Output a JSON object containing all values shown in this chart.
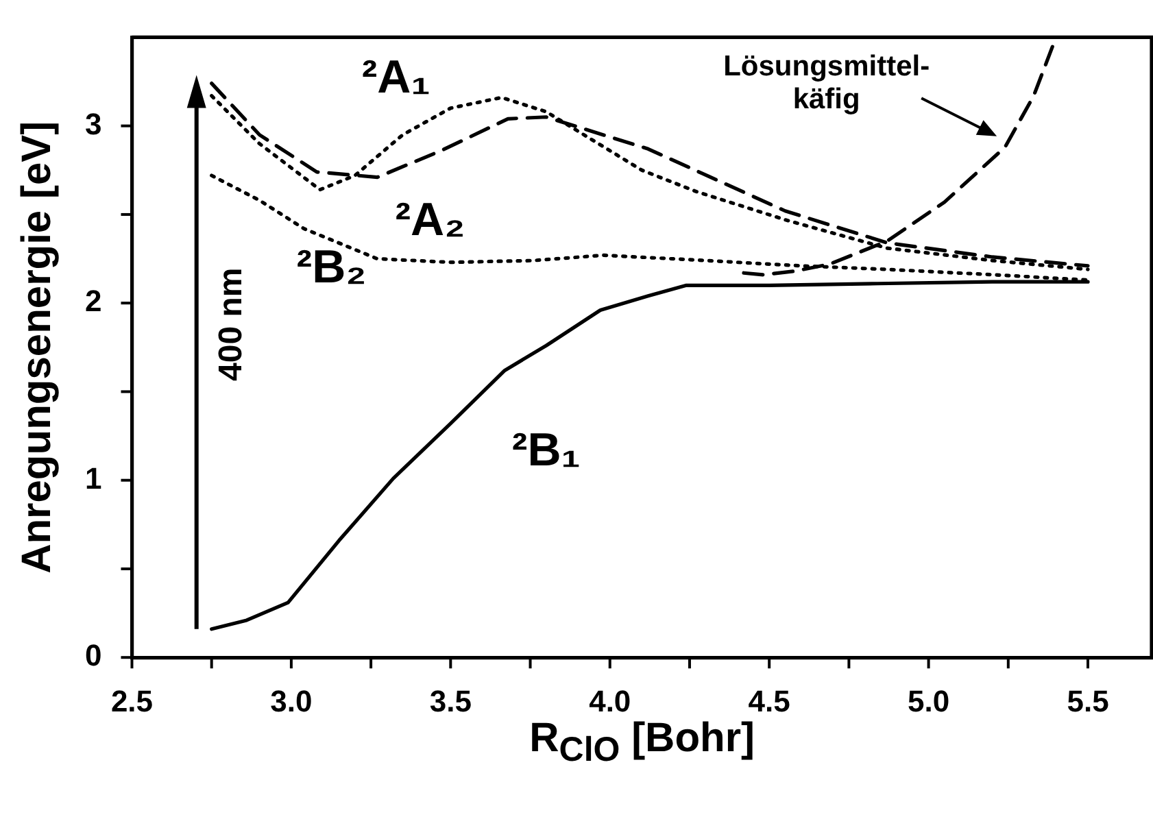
{
  "chart_data": {
    "type": "line",
    "xlabel": "R$_{ClO}$ [Bohr]",
    "ylabel": "Anregungsenergie [eV]",
    "xlim": [
      2.5,
      5.7
    ],
    "ylim": [
      0,
      3.5
    ],
    "xticks": [
      2.5,
      {
        "value": 2.75,
        "label": null
      },
      {
        "value": 3,
        "label": "3.0"
      },
      {
        "value": 3.25,
        "label": null
      },
      3.5,
      {
        "value": 3.75,
        "label": null
      },
      {
        "value": 4,
        "label": "4.0"
      },
      {
        "value": 4.25,
        "label": null
      },
      4.5,
      {
        "value": 4.75,
        "label": null
      },
      {
        "value": 5,
        "label": "5.0"
      },
      {
        "value": 5.25,
        "label": null
      },
      5.5
    ],
    "yticks": [
      0,
      {
        "value": 0.5,
        "label": null
      },
      1,
      {
        "value": 1.5,
        "label": null
      },
      2,
      {
        "value": 2.5,
        "label": null
      },
      3
    ],
    "grid": false,
    "legend": false,
    "marker": "none",
    "series": [
      {
        "name": "²A₁",
        "color": "#000000",
        "line_style": "dotted",
        "x": [
          2.75,
          2.9,
          3.09,
          3.2,
          3.35,
          3.5,
          3.66,
          3.8,
          4.1,
          4.27,
          4.55,
          4.87,
          5.2,
          5.5
        ],
        "values": [
          3.17,
          2.9,
          2.64,
          2.72,
          2.95,
          3.1,
          3.16,
          3.08,
          2.75,
          2.63,
          2.47,
          2.31,
          2.24,
          2.19
        ]
      },
      {
        "name": "²A₂",
        "color": "#000000",
        "line_style": "dashed",
        "x": [
          2.75,
          2.9,
          3.08,
          3.27,
          3.47,
          3.68,
          3.8,
          4.12,
          4.55,
          4.87,
          5.2,
          5.5
        ],
        "values": [
          3.24,
          2.95,
          2.74,
          2.71,
          2.86,
          3.04,
          3.05,
          2.87,
          2.52,
          2.34,
          2.26,
          2.21
        ]
      },
      {
        "name": "²B₂",
        "color": "#000000",
        "line_style": "dotted",
        "x": [
          2.75,
          2.9,
          3.04,
          3.27,
          3.5,
          3.76,
          3.98,
          4.3,
          4.6,
          4.87,
          5.2,
          5.5
        ],
        "values": [
          2.72,
          2.58,
          2.42,
          2.25,
          2.23,
          2.24,
          2.27,
          2.24,
          2.21,
          2.19,
          2.16,
          2.13
        ]
      },
      {
        "name": "²B₁",
        "color": "#000000",
        "line_style": "solid",
        "x": [
          2.75,
          2.86,
          2.99,
          3.15,
          3.32,
          3.5,
          3.67,
          3.8,
          3.97,
          4.12,
          4.24,
          4.5,
          4.84,
          5.2,
          5.5
        ],
        "values": [
          0.16,
          0.21,
          0.31,
          0.66,
          1.01,
          1.32,
          1.62,
          1.76,
          1.96,
          2.04,
          2.1,
          2.1,
          2.11,
          2.12,
          2.12
        ]
      },
      {
        "color": "#000000",
        "line_style": "dashed",
        "x": [
          4.42,
          4.48,
          4.58,
          4.69,
          4.87,
          5.05,
          5.24,
          5.33,
          5.4
        ],
        "values": [
          2.17,
          2.16,
          2.18,
          2.22,
          2.35,
          2.57,
          2.88,
          3.17,
          3.5
        ]
      }
    ],
    "annotations": [
      "400 nm",
      {
        "text": "Lösungsmittel-\nkäfig",
        "x": 5.24,
        "y": 2.88
      }
    ]
  }
}
